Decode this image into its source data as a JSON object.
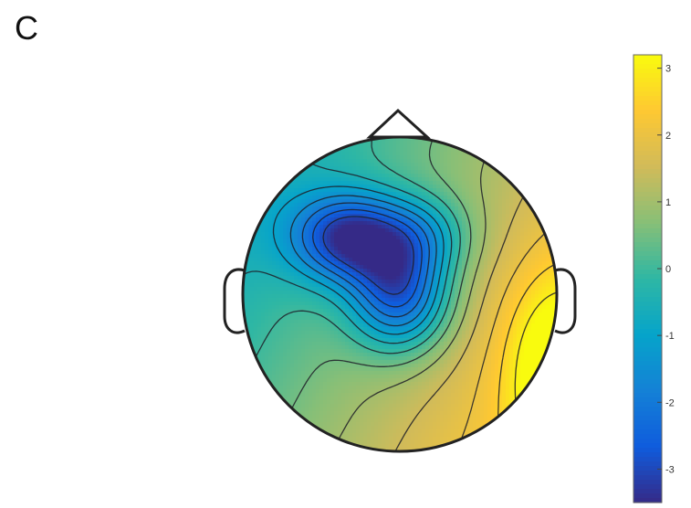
{
  "panel": {
    "label": "C"
  },
  "colormap": {
    "name": "parula",
    "stops": [
      "#352a87",
      "#0f5cdd",
      "#1481d6",
      "#06a4ca",
      "#2eb7a4",
      "#87bf77",
      "#d1bb59",
      "#fec832",
      "#f9fb0e"
    ]
  },
  "colorbar": {
    "range": [
      -3.5,
      3.2
    ],
    "ticks": [
      {
        "value": 3,
        "label": "3"
      },
      {
        "value": 2,
        "label": "2"
      },
      {
        "value": 1,
        "label": "1"
      },
      {
        "value": 0,
        "label": "0"
      },
      {
        "value": -1,
        "label": "-1"
      },
      {
        "value": -2,
        "label": "-2"
      },
      {
        "value": -3,
        "label": "-3"
      }
    ]
  },
  "topoplot": {
    "minimum": {
      "value": -3.4,
      "region": "left-frontal-central"
    },
    "maximum": {
      "value": 3.2,
      "region": "right-temporal"
    },
    "contours": true
  }
}
